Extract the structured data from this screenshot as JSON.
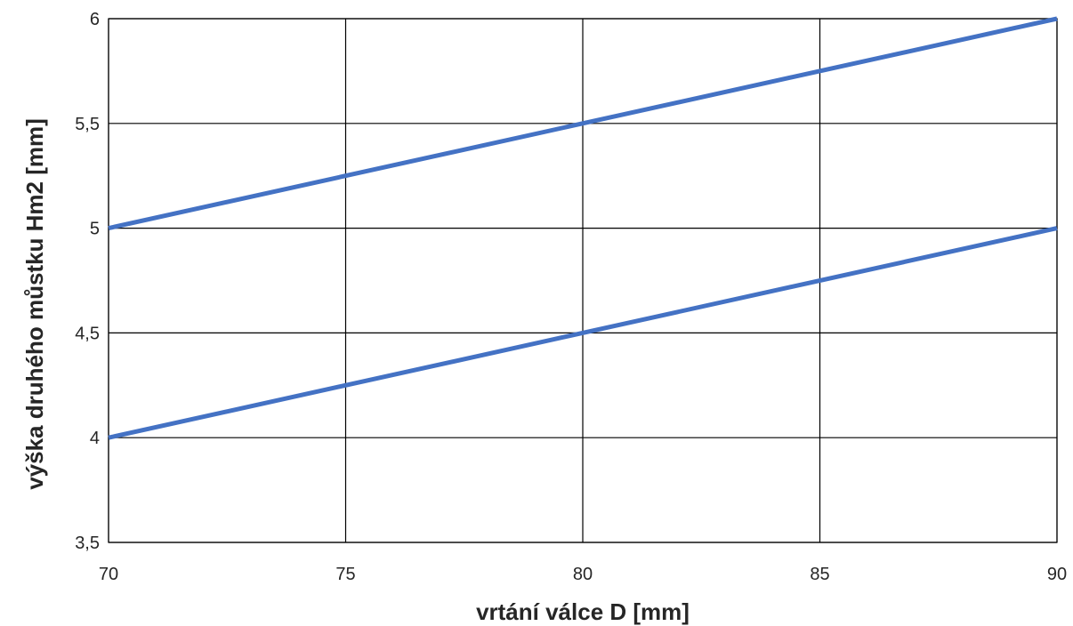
{
  "chart_data": {
    "type": "line",
    "title": "",
    "xlabel": "vrtání válce D [mm]",
    "ylabel": "výška druhého můstku Hm2 [mm]",
    "xlim": [
      70,
      90
    ],
    "ylim": [
      3.5,
      6
    ],
    "x_ticks": [
      70,
      75,
      80,
      85,
      90
    ],
    "y_ticks": [
      3.5,
      4,
      4.5,
      5,
      5.5,
      6
    ],
    "y_tick_labels": [
      "3,5",
      "4",
      "4,5",
      "5",
      "5,5",
      "6"
    ],
    "x_tick_labels": [
      "70",
      "75",
      "80",
      "85",
      "90"
    ],
    "grid": true,
    "legend": "none",
    "line_color": "#4472C4",
    "series": [
      {
        "x": [
          70,
          90
        ],
        "y": [
          5,
          6
        ]
      },
      {
        "x": [
          70,
          90
        ],
        "y": [
          4,
          5
        ]
      }
    ]
  }
}
